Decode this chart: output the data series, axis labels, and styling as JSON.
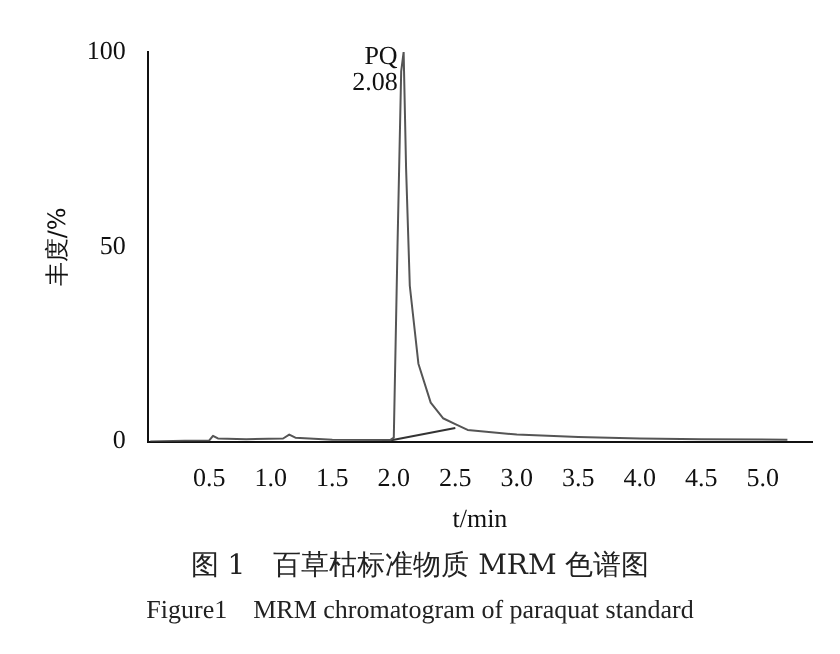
{
  "chart_data": {
    "type": "line",
    "xlabel": "t/min",
    "ylabel": "丰度/%",
    "xlim": [
      0,
      5.4
    ],
    "xticks": [
      0.5,
      {
        "value": 1,
        "label": "1.0"
      },
      1.5,
      {
        "value": 2,
        "label": "2.0"
      },
      2.5,
      {
        "value": 3,
        "label": "3.0"
      },
      3.5,
      {
        "value": 4,
        "label": "4.0"
      },
      4.5,
      {
        "value": 5,
        "label": "5.0"
      }
    ],
    "ylim": [
      0,
      100
    ],
    "yticks": [
      0,
      50,
      100
    ],
    "grid": false,
    "legend": false,
    "marker": "none",
    "series": [
      {
        "color": "#555555",
        "x": [
          0.02,
          0.3,
          0.5,
          0.53,
          0.57,
          0.8,
          1.1,
          1.15,
          1.2,
          1.5,
          1.97,
          2.0,
          2.03,
          2.06,
          2.08,
          2.1,
          2.13,
          2.2,
          2.3,
          2.4,
          2.5,
          2.6,
          3.0,
          3.5,
          4.0,
          4.5,
          5.2
        ],
        "values": [
          0,
          0.2,
          0.3,
          1.5,
          0.8,
          0.6,
          0.8,
          1.8,
          1.0,
          0.5,
          0.4,
          1,
          50,
          95,
          100,
          70,
          40,
          20,
          10,
          6,
          4.5,
          3,
          1.8,
          1.2,
          0.8,
          0.6,
          0.5
        ]
      },
      {
        "color": "#333333",
        "x": [
          1.97,
          2.5
        ],
        "values": [
          0.3,
          3.5
        ]
      }
    ],
    "annotations": [
      {
        "text": "PQ",
        "x": 2.08,
        "y": 100
      },
      {
        "text": "2.08",
        "x": 2.08,
        "y": 100
      },
      "图 1　百草枯标准物质 MRM 色谱图",
      "Figure1　MRM chromatogram of paraquat standard"
    ]
  }
}
